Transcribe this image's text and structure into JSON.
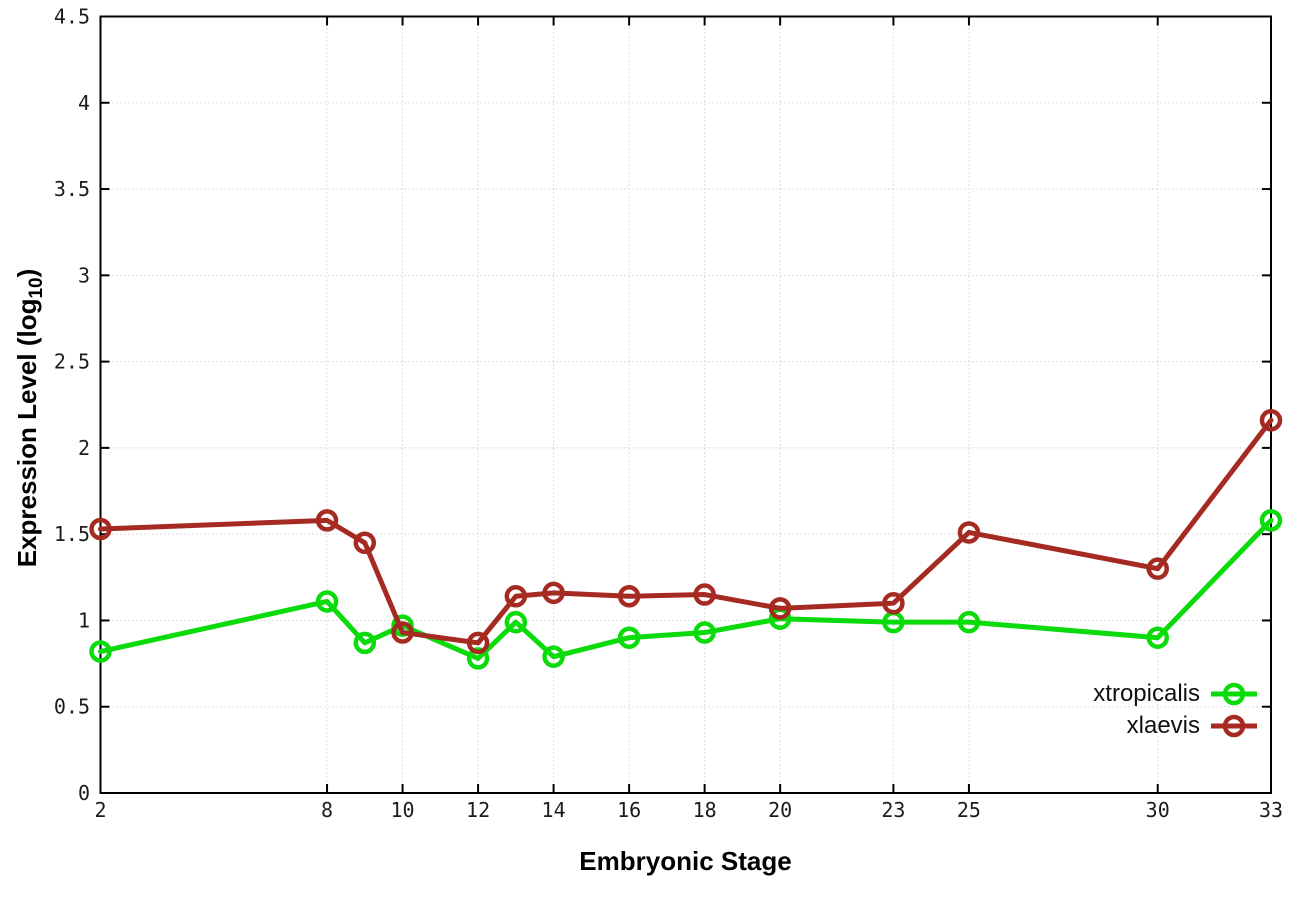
{
  "chart_data": {
    "type": "line",
    "title": "",
    "xlabel": "Embryonic Stage",
    "ylabel": "Expression Level (log10)",
    "ylabel_rich": {
      "prefix": "Expression Level (log",
      "sub": "10",
      "suffix": ")"
    },
    "x": [
      2,
      8,
      9,
      10,
      12,
      13,
      14,
      16,
      18,
      20,
      23,
      25,
      30,
      33
    ],
    "xticks": [
      2,
      8,
      10,
      12,
      14,
      16,
      18,
      20,
      23,
      25,
      30,
      33
    ],
    "xtick_labels": [
      "2",
      "8",
      "10",
      "12",
      "14",
      "16",
      "18",
      "20",
      "23",
      "25",
      "30",
      "33"
    ],
    "yticks": [
      0,
      0.5,
      1,
      1.5,
      2,
      2.5,
      3,
      3.5,
      4,
      4.5
    ],
    "ytick_labels": [
      "0",
      "0.5",
      "1",
      "1.5",
      "2",
      "2.5",
      "3",
      "3.5",
      "4",
      "4.5"
    ],
    "xlim": [
      2,
      33
    ],
    "ylim": [
      0,
      4.5
    ],
    "grid": true,
    "grid_style": "dotted",
    "legend_position": "inside-bottom-right",
    "marker": "open-circle",
    "colors": {
      "background": "#ffffff",
      "axis": "#000000",
      "grid": "#bdbdbd",
      "tick_text": "#1c1c1c"
    },
    "series": [
      {
        "name": "xtropicalis",
        "color": "#0bdb0b",
        "values": [
          0.82,
          1.11,
          0.87,
          0.97,
          0.78,
          0.99,
          0.79,
          0.9,
          0.93,
          1.01,
          0.99,
          0.99,
          0.9,
          1.58
        ]
      },
      {
        "name": "xlaevis",
        "color": "#a52a21",
        "values": [
          1.53,
          1.58,
          1.45,
          0.93,
          0.87,
          1.14,
          1.16,
          1.14,
          1.15,
          1.07,
          1.1,
          1.51,
          1.3,
          2.16
        ]
      }
    ]
  }
}
